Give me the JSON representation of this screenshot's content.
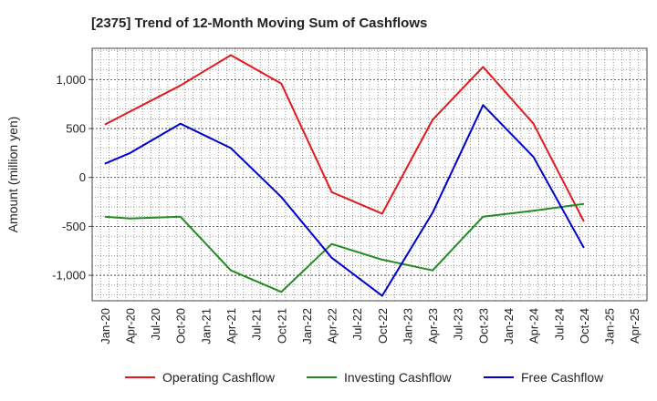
{
  "chart_data": {
    "type": "line",
    "title": "[2375]  Trend of 12-Month Moving Sum of Cashflows",
    "xlabel": "",
    "ylabel": "Amount (million yen)",
    "categories": [
      "Jan-20",
      "Apr-20",
      "Jul-20",
      "Oct-20",
      "Jan-21",
      "Apr-21",
      "Jul-21",
      "Oct-21",
      "Jan-22",
      "Apr-22",
      "Jul-22",
      "Oct-22",
      "Jan-23",
      "Apr-23",
      "Jul-23",
      "Oct-23",
      "Jan-24",
      "Apr-24",
      "Jul-24",
      "Oct-24",
      "Jan-25",
      "Apr-25"
    ],
    "ylim": [
      -1260,
      1320
    ],
    "yticks": [
      1000,
      500,
      0,
      -500,
      -1000
    ],
    "ytick_labels": [
      "1,000",
      "500",
      "0",
      "-500",
      "-1,000"
    ],
    "grid": true,
    "legend_position": "bottom",
    "series": [
      {
        "name": "Operating Cashflow",
        "color": "#e31a1c",
        "points": [
          [
            "Jan-20",
            540
          ],
          [
            "Oct-20",
            940
          ],
          [
            "Apr-21",
            1250
          ],
          [
            "Oct-21",
            960
          ],
          [
            "Apr-22",
            -150
          ],
          [
            "Oct-22",
            -370
          ],
          [
            "Apr-23",
            590
          ],
          [
            "Oct-23",
            1130
          ],
          [
            "Apr-24",
            550
          ],
          [
            "Oct-24",
            -450
          ]
        ]
      },
      {
        "name": "Investing Cashflow",
        "color": "#228b22",
        "points": [
          [
            "Jan-20",
            -400
          ],
          [
            "Apr-20",
            -420
          ],
          [
            "Oct-20",
            -400
          ],
          [
            "Apr-21",
            -950
          ],
          [
            "Oct-21",
            -1170
          ],
          [
            "Apr-22",
            -680
          ],
          [
            "Oct-22",
            -840
          ],
          [
            "Apr-23",
            -950
          ],
          [
            "Oct-23",
            -400
          ],
          [
            "Apr-24",
            -340
          ],
          [
            "Oct-24",
            -270
          ]
        ]
      },
      {
        "name": "Free Cashflow",
        "color": "#0000cc",
        "points": [
          [
            "Jan-20",
            140
          ],
          [
            "Apr-20",
            250
          ],
          [
            "Oct-20",
            550
          ],
          [
            "Apr-21",
            300
          ],
          [
            "Oct-21",
            -200
          ],
          [
            "Apr-22",
            -820
          ],
          [
            "Oct-22",
            -1210
          ],
          [
            "Apr-23",
            -360
          ],
          [
            "Oct-23",
            740
          ],
          [
            "Apr-24",
            210
          ],
          [
            "Oct-24",
            -720
          ]
        ]
      }
    ]
  }
}
